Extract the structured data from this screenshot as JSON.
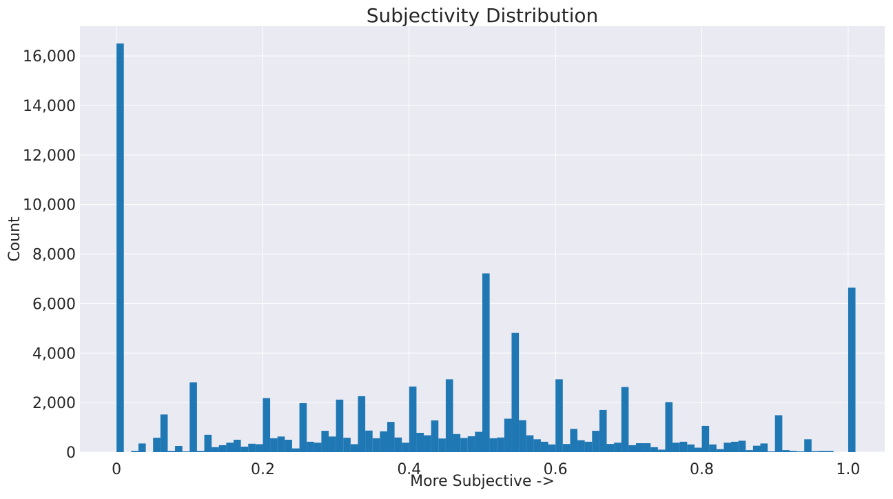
{
  "chart_data": {
    "type": "bar",
    "title": "Subjectivity Distribution",
    "xlabel": "More Subjective ->",
    "ylabel": "Count",
    "xlim": [
      -0.05,
      1.05
    ],
    "ylim": [
      0,
      17200
    ],
    "grid": true,
    "bar_color": "#1f77b4",
    "background_color": "#eaeaf2",
    "grid_color": "#ffffff",
    "x_ticks": [
      {
        "value": 0,
        "label": "0"
      },
      {
        "value": 0.2,
        "label": "0.2"
      },
      {
        "value": 0.4,
        "label": "0.4"
      },
      {
        "value": 0.6,
        "label": "0.6"
      },
      {
        "value": 0.8,
        "label": "0.8"
      },
      {
        "value": 1.0,
        "label": "1.0"
      }
    ],
    "y_ticks": [
      {
        "value": 0,
        "label": "0"
      },
      {
        "value": 2000,
        "label": "2,000"
      },
      {
        "value": 4000,
        "label": "4,000"
      },
      {
        "value": 6000,
        "label": "6,000"
      },
      {
        "value": 8000,
        "label": "8,000"
      },
      {
        "value": 10000,
        "label": "10,000"
      },
      {
        "value": 12000,
        "label": "12,000"
      },
      {
        "value": 14000,
        "label": "14,000"
      },
      {
        "value": 16000,
        "label": "16,000"
      }
    ],
    "bin_width": 0.01,
    "bin_start": 0.0,
    "values": [
      16500,
      0,
      50,
      350,
      0,
      580,
      1520,
      50,
      250,
      30,
      2820,
      50,
      700,
      200,
      280,
      380,
      500,
      220,
      340,
      320,
      2180,
      560,
      630,
      500,
      150,
      1980,
      420,
      380,
      860,
      630,
      2120,
      580,
      320,
      2260,
      870,
      560,
      840,
      1220,
      590,
      380,
      2650,
      780,
      680,
      1280,
      550,
      2940,
      730,
      570,
      640,
      820,
      7220,
      560,
      590,
      1350,
      4820,
      1290,
      680,
      520,
      420,
      310,
      2940,
      330,
      940,
      480,
      420,
      860,
      1700,
      330,
      380,
      2630,
      280,
      360,
      360,
      200,
      100,
      2020,
      380,
      420,
      310,
      180,
      1060,
      310,
      120,
      380,
      420,
      460,
      80,
      260,
      350,
      30,
      1490,
      80,
      50,
      30,
      520,
      40,
      50,
      50,
      0,
      0,
      6640
    ]
  }
}
